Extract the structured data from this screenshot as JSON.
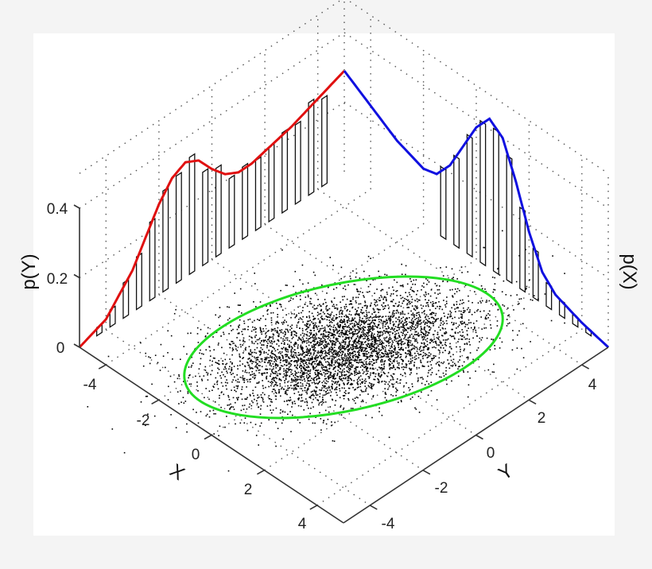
{
  "chart_data": {
    "type": "scatter",
    "title": "",
    "description": "3D view of bivariate Gaussian-mixture samples with 1-sigma ellipse and marginal histograms/densities on the back walls",
    "axes": {
      "x": {
        "label": "X",
        "range": [
          -5,
          5
        ],
        "ticks": [
          -4,
          -2,
          0,
          2,
          4
        ]
      },
      "y": {
        "label": "Y",
        "range": [
          -5,
          5
        ],
        "ticks": [
          -4,
          -2,
          0,
          2,
          4
        ]
      },
      "z_left": {
        "label": "p(Y)",
        "range": [
          0,
          0.4
        ],
        "ticks": [
          "0",
          "0.2",
          "0.4"
        ]
      },
      "z_right": {
        "label": "p(X)"
      }
    },
    "grid": true,
    "series": [
      {
        "name": "samples",
        "type": "scatter",
        "color": "#000000",
        "approx_mean": [
          0.0,
          0.0
        ],
        "note": "dense point cloud centered near origin, elongated along Y"
      },
      {
        "name": "confidence-ellipse",
        "type": "line",
        "color": "#22dd22"
      },
      {
        "name": "p(Y) marginal density",
        "type": "line",
        "color": "#e01010",
        "x": [
          -5,
          -4,
          -3,
          -2.5,
          -2,
          -1.5,
          -1,
          -0.5,
          0,
          0.5,
          1,
          1.5,
          2,
          2.5,
          3,
          4,
          5
        ],
        "values": [
          0.0,
          0.03,
          0.12,
          0.19,
          0.26,
          0.31,
          0.33,
          0.31,
          0.26,
          0.22,
          0.2,
          0.2,
          0.21,
          0.22,
          0.23,
          0.26,
          0.29
        ]
      },
      {
        "name": "p(X) marginal density",
        "type": "line",
        "color": "#1010e0",
        "x": [
          -5,
          -4,
          -3,
          -2,
          -1.5,
          -1,
          -0.5,
          0,
          0.5,
          1,
          1.5,
          2,
          2.5,
          3,
          4,
          5
        ],
        "values": [
          0.29,
          0.24,
          0.19,
          0.16,
          0.17,
          0.22,
          0.3,
          0.38,
          0.43,
          0.4,
          0.3,
          0.18,
          0.09,
          0.05,
          0.02,
          0.0
        ]
      },
      {
        "name": "histograms",
        "type": "bar",
        "color": "#000000",
        "note": "unfilled bar outlines under each marginal density curve"
      }
    ]
  },
  "labels": {
    "z_ticks": [
      "0",
      "0.2",
      "0.4"
    ],
    "x_ticks": [
      "-4",
      "-2",
      "0",
      "2",
      "4"
    ],
    "y_ticks": [
      "-4",
      "-2",
      "0",
      "2",
      "4"
    ],
    "x_axis": "X",
    "y_axis": "Y",
    "pY": "p(Y)",
    "pX": "p(X)"
  },
  "colors": {
    "background": "#f4f4f4",
    "panel": "#ffffff",
    "red_curve": "#e01010",
    "blue_curve": "#1010e0",
    "ellipse": "#22dd22",
    "points": "#000000"
  }
}
